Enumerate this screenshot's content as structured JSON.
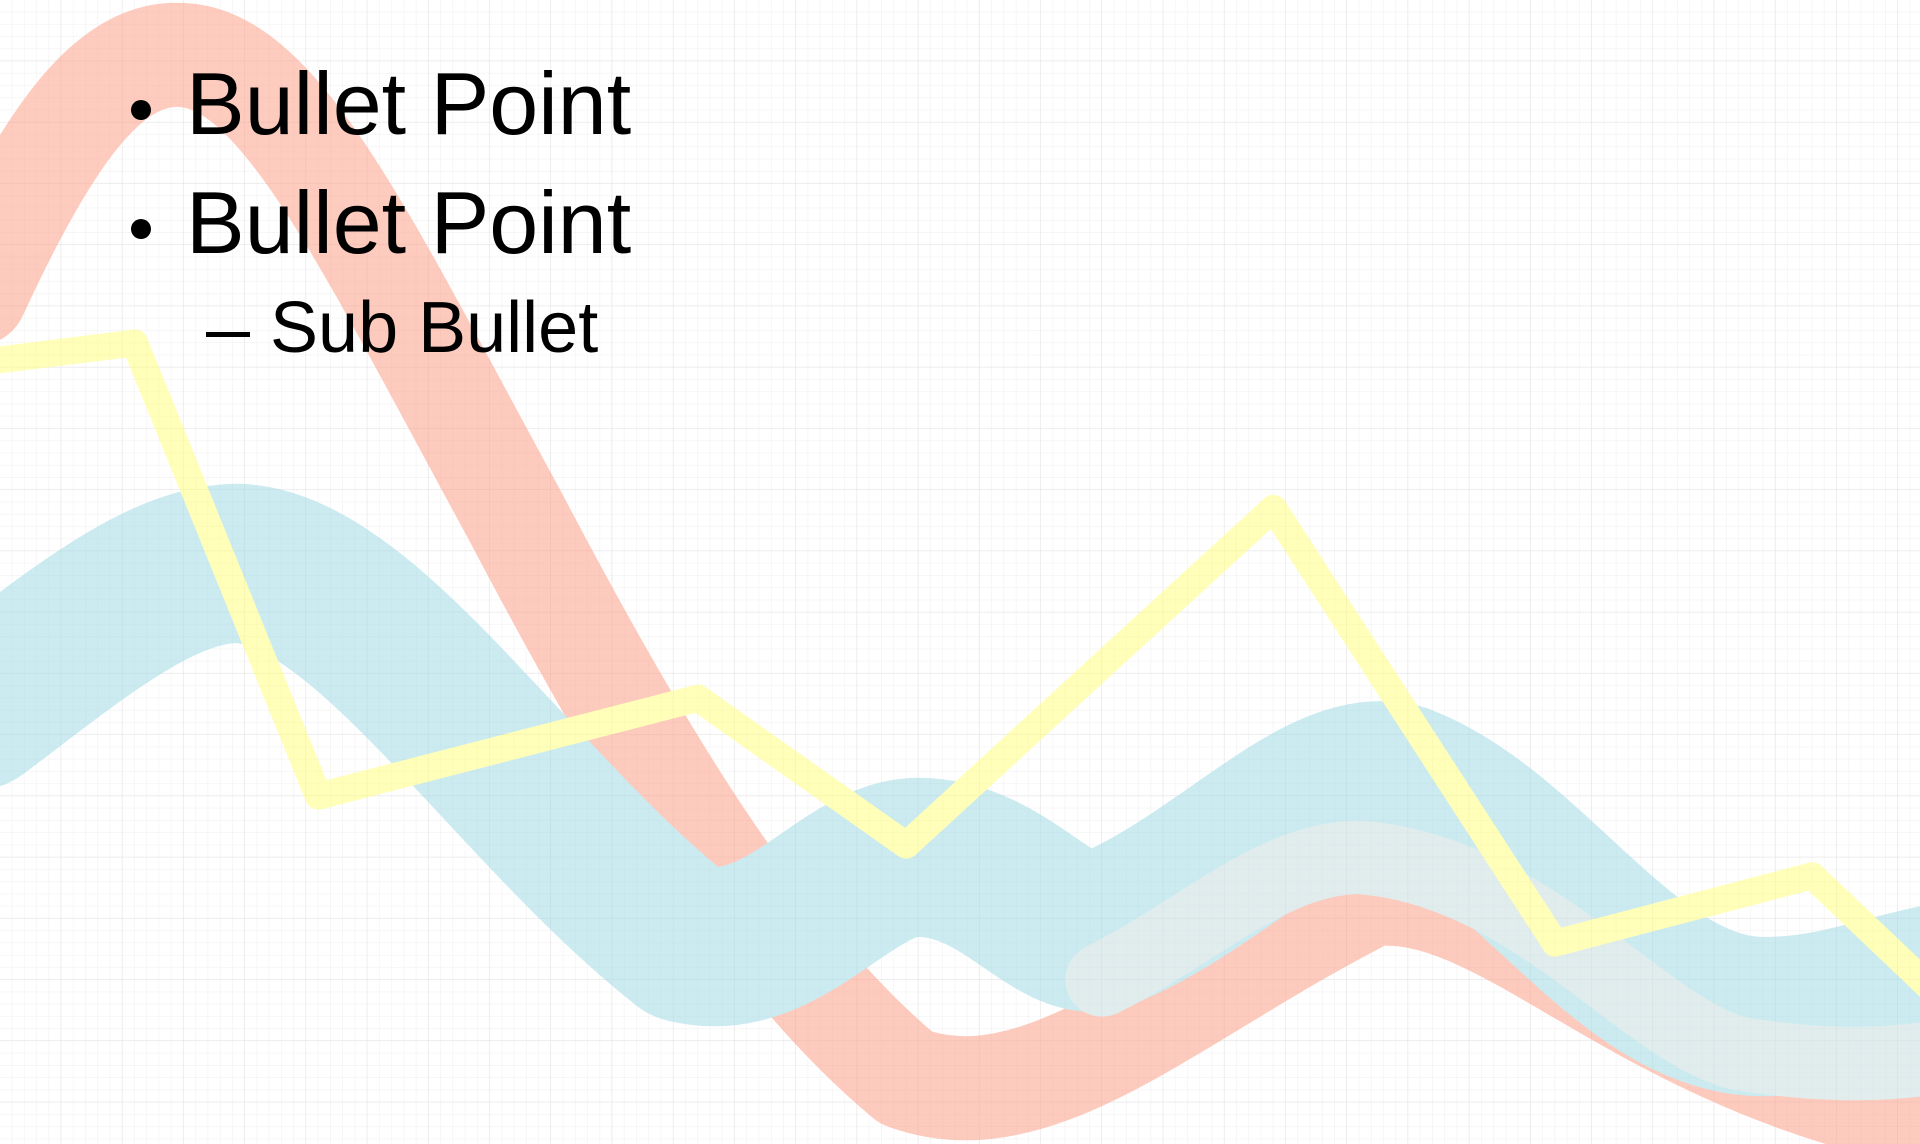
{
  "bullets": [
    "Bullet Point",
    "Bullet Point"
  ],
  "sub_bullets": [
    "Sub Bullet"
  ]
}
